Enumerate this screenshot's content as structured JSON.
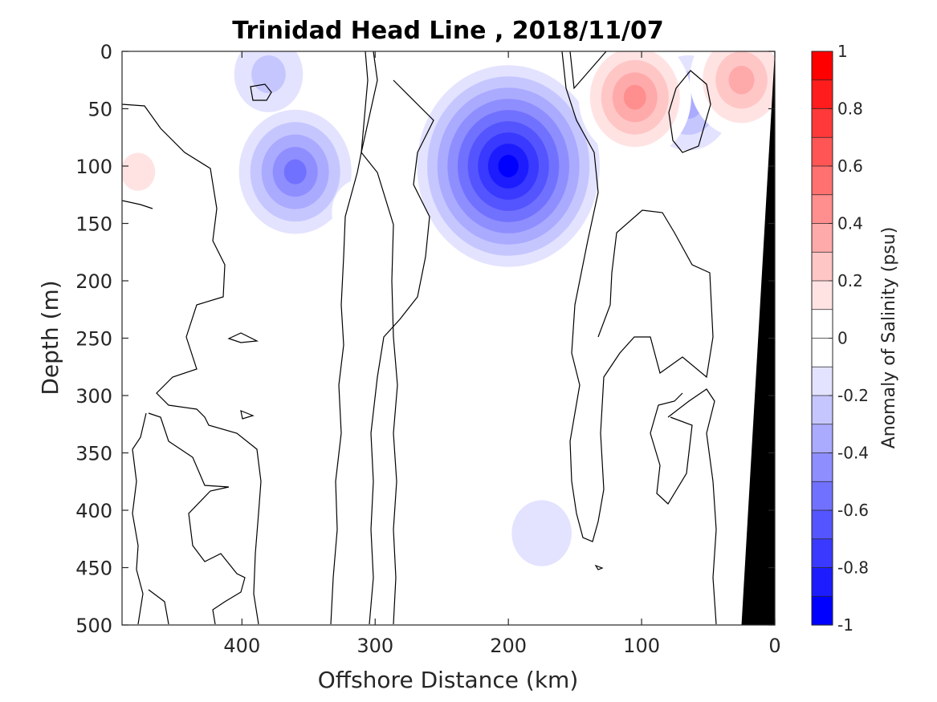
{
  "chart_data": {
    "type": "heatmap",
    "title": "Trinidad Head Line , 2018/11/07",
    "xlabel": "Offshore Distance (km)",
    "ylabel": "Depth (m)",
    "colorbar_label": "Anomaly of Salinity (psu)",
    "x_range": [
      490,
      0
    ],
    "y_range": [
      0,
      500
    ],
    "x_ticks": [
      400,
      300,
      200,
      100,
      0
    ],
    "y_ticks": [
      0,
      50,
      100,
      150,
      200,
      250,
      300,
      350,
      400,
      450,
      500
    ],
    "colorbar_range": [
      -1,
      1
    ],
    "colorbar_ticks": [
      1,
      0.8,
      0.6,
      0.4,
      0.2,
      0,
      -0.2,
      -0.4,
      -0.6,
      -0.8,
      -1
    ],
    "colorbar_levels": [
      "#ff0000",
      "#ff1c1c",
      "#ff3939",
      "#ff5555",
      "#ff7171",
      "#ff8e8e",
      "#ffaaaa",
      "#ffc6c6",
      "#ffe3e3",
      "#ffffff",
      "#ffffff",
      "#e3e3ff",
      "#c6c6ff",
      "#aaaaff",
      "#8e8eff",
      "#7171ff",
      "#5555ff",
      "#3939ff",
      "#1c1cff",
      "#0000ff"
    ],
    "grid": false,
    "anomaly_features": [
      {
        "kind": "negative",
        "x": 360,
        "y": 105,
        "peak": -0.45
      },
      {
        "kind": "negative",
        "x": 200,
        "y": 100,
        "peak": -0.85
      },
      {
        "kind": "negative",
        "x": 65,
        "y": 45,
        "peak": -0.3
      },
      {
        "kind": "negative",
        "x": 380,
        "y": 20,
        "peak": -0.2
      },
      {
        "kind": "negative",
        "x": 175,
        "y": 420,
        "peak": -0.15
      },
      {
        "kind": "positive",
        "x": 105,
        "y": 40,
        "peak": 0.45
      },
      {
        "kind": "positive",
        "x": 25,
        "y": 25,
        "peak": 0.4
      },
      {
        "kind": "positive",
        "x": 478,
        "y": 105,
        "peak": 0.2
      },
      {
        "kind": "positive",
        "x": 310,
        "y": 140,
        "peak": 0.15
      }
    ],
    "bathymetry": {
      "fill": "#000000",
      "top_x": 0,
      "top_depth": 0,
      "bottom_x": 25,
      "bottom_depth": 500
    }
  }
}
